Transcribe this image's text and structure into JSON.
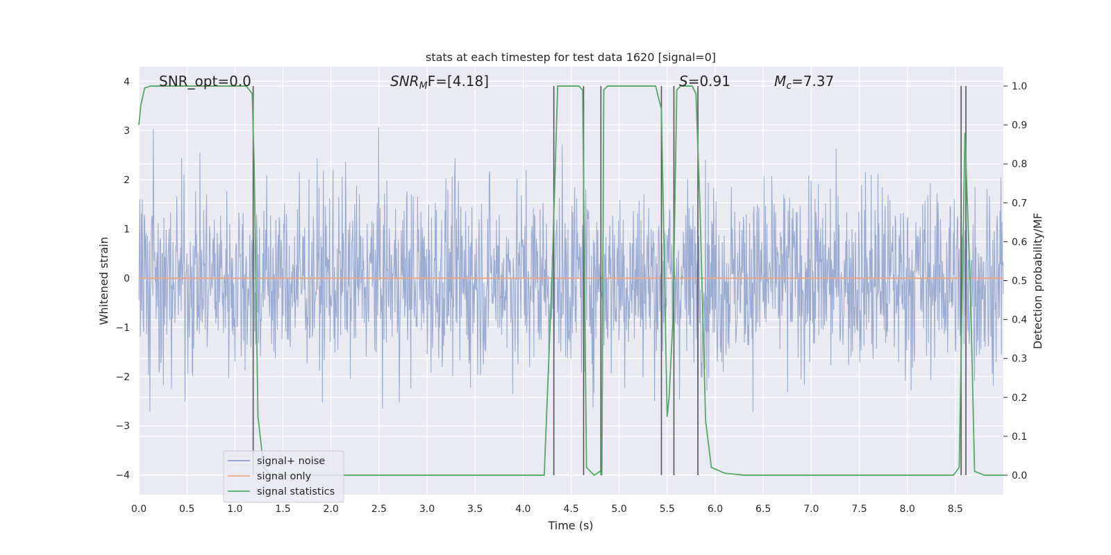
{
  "chart_data": {
    "type": "line",
    "title": "stats at each timestep for test data 1620 [signal=0]",
    "xlabel": "Time (s)",
    "ylabel_left": "Whitened strain",
    "ylabel_right": "Detection probability/MF",
    "xlim": [
      0,
      9
    ],
    "ylim_left": [
      -4.4,
      4.3
    ],
    "ylim_right": [
      -0.05,
      1.05
    ],
    "x_ticks": [
      "0.0",
      "0.5",
      "1.0",
      "1.5",
      "2.0",
      "2.5",
      "3.0",
      "3.5",
      "4.0",
      "4.5",
      "5.0",
      "5.5",
      "6.0",
      "6.5",
      "7.0",
      "7.5",
      "8.0",
      "8.5"
    ],
    "y_ticks_left": [
      "−4",
      "−3",
      "−2",
      "−1",
      "0",
      "1",
      "2",
      "3",
      "4"
    ],
    "y_ticks_right": [
      "0.0",
      "0.1",
      "0.2",
      "0.3",
      "0.4",
      "0.5",
      "0.6",
      "0.7",
      "0.8",
      "0.9",
      "1.0"
    ],
    "grid": true,
    "legend_position": "lower-left",
    "annotations": {
      "snr_opt": "SNR_opt=0.0",
      "snr_mf_base": "SNR",
      "snr_mf_sub": "M",
      "snr_mf_rest": "F=[4.18]",
      "s_italic": "S",
      "s_value": "=0.91",
      "mc_base": "M",
      "mc_sub": "c",
      "mc_value": "=7.37"
    },
    "series": [
      {
        "name": "signal+ noise",
        "color": "#8da0cb",
        "axis": "left",
        "description_values": "noise roughly within [-3.5, 3.7], dense"
      },
      {
        "name": "signal only",
        "color": "#e8a88a",
        "axis": "left",
        "x": [
          0,
          9
        ],
        "y": [
          0,
          0
        ]
      },
      {
        "name": "signal statistics",
        "color": "#55a868",
        "axis": "right",
        "x": [
          0,
          0.02,
          0.06,
          0.12,
          1.12,
          1.18,
          1.2,
          1.24,
          1.3,
          1.38,
          2.2,
          2.3,
          4.22,
          4.3,
          4.36,
          4.4,
          4.58,
          4.62,
          4.66,
          4.74,
          4.8,
          4.82,
          4.84,
          4.88,
          4.94,
          5.0,
          5.38,
          5.44,
          5.5,
          5.52,
          5.56,
          5.6,
          5.64,
          5.76,
          5.8,
          5.84,
          5.9,
          5.96,
          6.1,
          6.3,
          8.48,
          8.54,
          8.6,
          8.66,
          8.7,
          8.8,
          9.0
        ],
        "y": [
          0.9,
          0.95,
          0.995,
          1.0,
          1.0,
          0.98,
          0.8,
          0.15,
          0.02,
          0.0,
          0.0,
          0.0,
          0.0,
          0.5,
          1.0,
          1.0,
          1.0,
          0.99,
          0.02,
          0.0,
          0.01,
          0.0,
          0.99,
          1.0,
          1.0,
          1.0,
          1.0,
          0.94,
          0.15,
          0.2,
          0.4,
          0.99,
          1.0,
          1.0,
          0.98,
          0.7,
          0.14,
          0.02,
          0.005,
          0.0,
          0.0,
          0.02,
          0.88,
          0.45,
          0.01,
          0.0,
          0.0
        ]
      }
    ],
    "vertical_markers_x": [
      1.19,
      4.32,
      4.63,
      4.81,
      5.44,
      5.57,
      5.82,
      8.56,
      8.61
    ]
  }
}
